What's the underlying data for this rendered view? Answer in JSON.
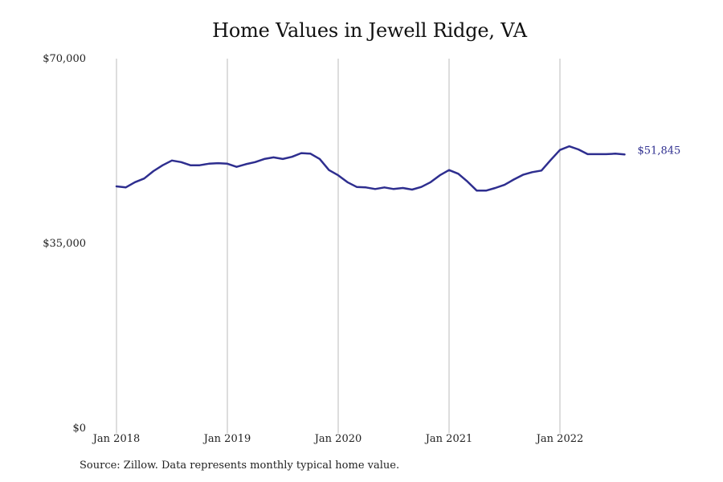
{
  "chart_data": {
    "type": "line",
    "title": "Home Values in Jewell Ridge, VA",
    "xlabel": "",
    "ylabel": "",
    "source": "Source: Zillow. Data represents monthly typical home value.",
    "ylim": [
      0,
      70000
    ],
    "yticks": [
      0,
      35000,
      70000
    ],
    "ytick_labels": [
      "$0",
      "$35,000",
      "$70,000"
    ],
    "xticks": [
      "2018-01",
      "2019-01",
      "2020-01",
      "2021-01",
      "2022-01"
    ],
    "xtick_labels": [
      "Jan 2018",
      "Jan 2019",
      "Jan 2020",
      "Jan 2021",
      "Jan 2022"
    ],
    "grid": {
      "x": true,
      "y": false
    },
    "colors": {
      "line": "#2e2e8f",
      "grid": "#bbbbbb",
      "text": "#222222"
    },
    "end_label": "$51,845",
    "series": [
      {
        "x": [
          "2018-01",
          "2018-02",
          "2018-03",
          "2018-04",
          "2018-05",
          "2018-06",
          "2018-07",
          "2018-08",
          "2018-09",
          "2018-10",
          "2018-11",
          "2018-12",
          "2019-01",
          "2019-02",
          "2019-03",
          "2019-04",
          "2019-05",
          "2019-06",
          "2019-07",
          "2019-08",
          "2019-09",
          "2019-10",
          "2019-11",
          "2019-12",
          "2020-01",
          "2020-02",
          "2020-03",
          "2020-04",
          "2020-05",
          "2020-06",
          "2020-07",
          "2020-08",
          "2020-09",
          "2020-10",
          "2020-11",
          "2020-12",
          "2021-01",
          "2021-02",
          "2021-03",
          "2021-04",
          "2021-05",
          "2021-06",
          "2021-07",
          "2021-08",
          "2021-09",
          "2021-10",
          "2021-11",
          "2021-12",
          "2022-01",
          "2022-02",
          "2022-03",
          "2022-04",
          "2022-05",
          "2022-06",
          "2022-07",
          "2022-08"
        ],
        "values": [
          45800,
          45600,
          46600,
          47300,
          48700,
          49800,
          50700,
          50400,
          49800,
          49800,
          50100,
          50200,
          50100,
          49500,
          50000,
          50400,
          51000,
          51300,
          51000,
          51400,
          52100,
          52000,
          51000,
          48900,
          47900,
          46600,
          45700,
          45600,
          45300,
          45600,
          45300,
          45500,
          45200,
          45700,
          46600,
          47900,
          48900,
          48200,
          46700,
          45000,
          45000,
          45500,
          46100,
          47100,
          48000,
          48500,
          48800,
          50800,
          52700,
          53400,
          52800,
          51900,
          51900,
          51900,
          52000,
          51845
        ]
      }
    ]
  }
}
